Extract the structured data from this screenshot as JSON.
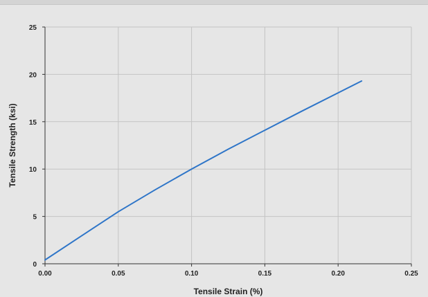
{
  "chart_data": {
    "type": "line",
    "title": "",
    "xlabel": "Tensile Strain (%)",
    "ylabel": "Tensile Strength (ksi)",
    "xlim": [
      0,
      0.25
    ],
    "ylim": [
      0,
      25
    ],
    "x_ticks": [
      "0.00",
      "0.05",
      "0.10",
      "0.15",
      "0.20",
      "0.25"
    ],
    "y_ticks": [
      "0",
      "5",
      "10",
      "15",
      "20",
      "25"
    ],
    "grid": true,
    "legend": "none",
    "series": [
      {
        "color": "#2e75c8",
        "x": [
          0.0,
          0.025,
          0.05,
          0.075,
          0.1,
          0.125,
          0.15,
          0.175,
          0.2,
          0.216
        ],
        "y": [
          0.4,
          2.95,
          5.5,
          7.8,
          10.0,
          12.1,
          14.1,
          16.1,
          18.05,
          19.3
        ]
      }
    ],
    "colors": {
      "background": "#e6e6e6",
      "grid": "#c3c3c3",
      "axis": "#333333",
      "line": "#2e75c8"
    }
  }
}
